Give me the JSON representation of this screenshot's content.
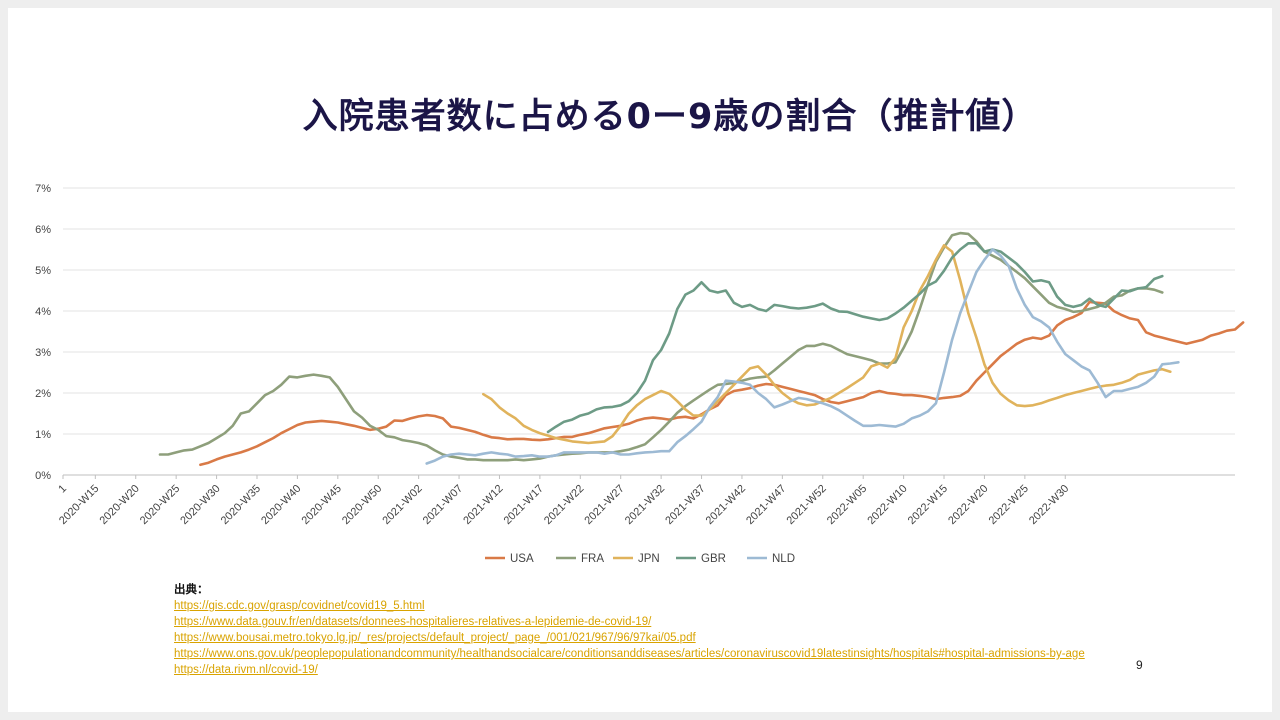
{
  "slide": {
    "title": "入院患者数に占める0ー9歳の割合（推計値）",
    "page_number": "9",
    "sources_label": "出典：",
    "sources": [
      "https://gis.cdc.gov/grasp/covidnet/covid19_5.html",
      "https://www.data.gouv.fr/en/datasets/donnees-hospitalieres-relatives-a-lepidemie-de-covid-19/",
      "https://www.bousai.metro.tokyo.lg.jp/_res/projects/default_project/_page_/001/021/967/96/97kai/05.pdf",
      "https://www.ons.gov.uk/peoplepopulationandcommunity/healthandsocialcare/conditionsanddiseases/articles/coronaviruscovid19latestinsights/hospitals#hospital-admissions-by-age",
      "https://data.rivm.nl/covid-19/"
    ]
  },
  "chart_data": {
    "type": "line",
    "title": "",
    "xlabel": "",
    "ylabel": "",
    "ylim": [
      0,
      7
    ],
    "yticks": [
      "0%",
      "1%",
      "2%",
      "3%",
      "4%",
      "5%",
      "6%",
      "7%"
    ],
    "grid": true,
    "legend_position": "bottom",
    "x_tick_labels": [
      "1",
      "2020-W15",
      "2020-W20",
      "2020-W25",
      "2020-W30",
      "2020-W35",
      "2020-W40",
      "2020-W45",
      "2020-W50",
      "2021-W02",
      "2021-W07",
      "2021-W12",
      "2021-W17",
      "2021-W22",
      "2021-W27",
      "2021-W32",
      "2021-W37",
      "2021-W42",
      "2021-W47",
      "2021-W52",
      "2022-W05",
      "2022-W10",
      "2022-W15",
      "2022-W20",
      "2022-W25",
      "2022-W30"
    ],
    "series": [
      {
        "name": "USA",
        "color": "#d97a47",
        "start": 18,
        "values": [
          0.25,
          0.3,
          0.38,
          0.45,
          0.5,
          0.55,
          0.62,
          0.7,
          0.8,
          0.9,
          1.02,
          1.12,
          1.22,
          1.28,
          1.3,
          1.32,
          1.3,
          1.28,
          1.24,
          1.2,
          1.15,
          1.1,
          1.13,
          1.18,
          1.33,
          1.32,
          1.38,
          1.43,
          1.46,
          1.44,
          1.38,
          1.18,
          1.15,
          1.1,
          1.05,
          0.98,
          0.92,
          0.9,
          0.87,
          0.88,
          0.88,
          0.86,
          0.85,
          0.87,
          0.9,
          0.93,
          0.93,
          0.98,
          1.02,
          1.08,
          1.14,
          1.17,
          1.2,
          1.25,
          1.33,
          1.38,
          1.4,
          1.38,
          1.35,
          1.4,
          1.42,
          1.38,
          1.48,
          1.6,
          1.7,
          1.95,
          2.05,
          2.08,
          2.12,
          2.18,
          2.22,
          2.2,
          2.15,
          2.1,
          2.05,
          2.0,
          1.95,
          1.85,
          1.78,
          1.75,
          1.8,
          1.85,
          1.9,
          2.0,
          2.05,
          2.0,
          1.98,
          1.95,
          1.95,
          1.93,
          1.9,
          1.85,
          1.88,
          1.9,
          1.93,
          2.05,
          2.3,
          2.5,
          2.7,
          2.9,
          3.05,
          3.2,
          3.3,
          3.35,
          3.32,
          3.4,
          3.65,
          3.78,
          3.85,
          3.95,
          4.22,
          4.2,
          4.18,
          4.0,
          3.9,
          3.82,
          3.78,
          3.48,
          3.4,
          3.35,
          3.3,
          3.25,
          3.2,
          3.25,
          3.3,
          3.4,
          3.45,
          3.52,
          3.55,
          3.72
        ]
      },
      {
        "name": "FRA",
        "color": "#8e9f7b",
        "start": 13,
        "values": [
          0.5,
          0.5,
          0.55,
          0.6,
          0.62,
          0.7,
          0.78,
          0.9,
          1.02,
          1.2,
          1.5,
          1.55,
          1.75,
          1.95,
          2.05,
          2.2,
          2.4,
          2.38,
          2.42,
          2.45,
          2.42,
          2.38,
          2.15,
          1.85,
          1.55,
          1.4,
          1.2,
          1.1,
          0.95,
          0.92,
          0.85,
          0.82,
          0.78,
          0.72,
          0.6,
          0.5,
          0.45,
          0.42,
          0.38,
          0.38,
          0.36,
          0.36,
          0.36,
          0.36,
          0.38,
          0.36,
          0.38,
          0.4,
          0.45,
          0.48,
          0.5,
          0.52,
          0.53,
          0.55,
          0.55,
          0.55,
          0.55,
          0.58,
          0.62,
          0.68,
          0.75,
          0.92,
          1.1,
          1.3,
          1.52,
          1.68,
          1.82,
          1.95,
          2.08,
          2.2,
          2.22,
          2.25,
          2.3,
          2.35,
          2.38,
          2.4,
          2.55,
          2.72,
          2.88,
          3.05,
          3.15,
          3.15,
          3.2,
          3.15,
          3.05,
          2.95,
          2.9,
          2.85,
          2.8,
          2.72,
          2.72,
          2.75,
          3.1,
          3.5,
          4.05,
          4.65,
          5.2,
          5.55,
          5.85,
          5.9,
          5.88,
          5.7,
          5.45,
          5.35,
          5.25,
          5.1,
          4.95,
          4.8,
          4.6,
          4.4,
          4.2,
          4.1,
          4.05,
          3.98,
          4.0,
          4.05,
          4.1,
          4.2,
          4.35,
          4.38,
          4.5,
          4.55,
          4.55,
          4.52,
          4.45
        ]
      },
      {
        "name": "JPN",
        "color": "#e0b35c",
        "start": 53,
        "values": [
          1.97,
          1.85,
          1.65,
          1.5,
          1.38,
          1.2,
          1.1,
          1.02,
          0.96,
          0.9,
          0.86,
          0.82,
          0.8,
          0.78,
          0.8,
          0.82,
          0.95,
          1.2,
          1.5,
          1.7,
          1.85,
          1.95,
          2.05,
          1.98,
          1.8,
          1.6,
          1.45,
          1.45,
          1.6,
          1.8,
          2.0,
          2.2,
          2.4,
          2.6,
          2.65,
          2.45,
          2.2,
          2.0,
          1.85,
          1.75,
          1.7,
          1.72,
          1.8,
          1.88,
          2.0,
          2.12,
          2.25,
          2.38,
          2.65,
          2.72,
          2.62,
          2.85,
          3.6,
          4.0,
          4.5,
          4.85,
          5.25,
          5.6,
          5.45,
          4.75,
          3.95,
          3.35,
          2.7,
          2.25,
          1.98,
          1.82,
          1.7,
          1.68,
          1.7,
          1.75,
          1.82,
          1.88,
          1.95,
          2.0,
          2.05,
          2.1,
          2.15,
          2.18,
          2.2,
          2.25,
          2.32,
          2.45,
          2.5,
          2.55,
          2.58,
          2.52
        ]
      },
      {
        "name": "GBR",
        "color": "#6d9b86",
        "start": 61,
        "values": [
          1.05,
          1.18,
          1.3,
          1.35,
          1.45,
          1.5,
          1.6,
          1.65,
          1.66,
          1.7,
          1.8,
          2.0,
          2.3,
          2.8,
          3.05,
          3.45,
          4.05,
          4.4,
          4.5,
          4.7,
          4.5,
          4.45,
          4.5,
          4.2,
          4.1,
          4.15,
          4.05,
          4.0,
          4.15,
          4.12,
          4.08,
          4.06,
          4.08,
          4.12,
          4.18,
          4.06,
          3.99,
          3.98,
          3.92,
          3.86,
          3.82,
          3.78,
          3.82,
          3.94,
          4.08,
          4.25,
          4.42,
          4.62,
          4.72,
          4.98,
          5.3,
          5.5,
          5.65,
          5.65,
          5.45,
          5.5,
          5.45,
          5.3,
          5.15,
          4.95,
          4.72,
          4.75,
          4.7,
          4.35,
          4.15,
          4.1,
          4.15,
          4.3,
          4.15,
          4.1,
          4.3,
          4.5,
          4.48,
          4.55,
          4.58,
          4.78,
          4.85
        ]
      },
      {
        "name": "NLD",
        "color": "#9dbad4",
        "start": 46,
        "values": [
          0.28,
          0.35,
          0.45,
          0.5,
          0.52,
          0.5,
          0.48,
          0.52,
          0.55,
          0.52,
          0.5,
          0.45,
          0.46,
          0.48,
          0.45,
          0.45,
          0.48,
          0.55,
          0.55,
          0.55,
          0.55,
          0.55,
          0.52,
          0.55,
          0.5,
          0.5,
          0.53,
          0.55,
          0.56,
          0.58,
          0.58,
          0.8,
          0.95,
          1.12,
          1.3,
          1.65,
          1.9,
          2.3,
          2.28,
          2.25,
          2.2,
          2.0,
          1.85,
          1.65,
          1.72,
          1.8,
          1.88,
          1.85,
          1.8,
          1.75,
          1.68,
          1.58,
          1.45,
          1.32,
          1.2,
          1.2,
          1.22,
          1.2,
          1.18,
          1.25,
          1.38,
          1.45,
          1.55,
          1.75,
          2.5,
          3.3,
          3.95,
          4.45,
          4.95,
          5.25,
          5.5,
          5.35,
          5.1,
          4.55,
          4.15,
          3.85,
          3.75,
          3.6,
          3.25,
          2.95,
          2.8,
          2.65,
          2.55,
          2.25,
          1.9,
          2.05,
          2.05,
          2.1,
          2.15,
          2.25,
          2.4,
          2.7,
          2.72,
          2.75
        ]
      }
    ]
  }
}
